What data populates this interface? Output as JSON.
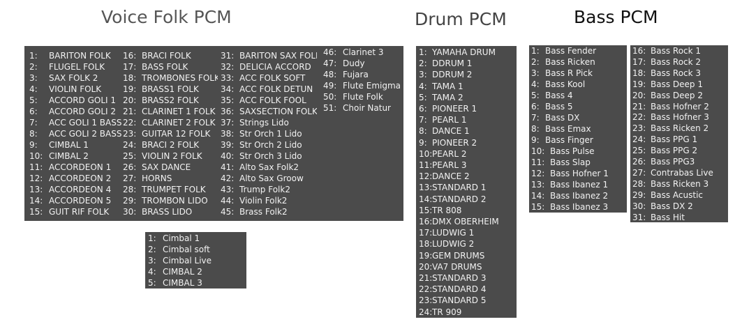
{
  "titles": {
    "voice": "Voice Folk PCM",
    "drum": "Drum PCM",
    "bass": "Bass PCM"
  },
  "colors": {
    "panel": "#4b4b4b",
    "text": "#f2f2f2",
    "voice_title": "#555555",
    "drum_title": "#444444",
    "bass_title": "#111111"
  },
  "voice": [
    {
      "n": "1:",
      "name": "BARITON FOLK"
    },
    {
      "n": "2:",
      "name": "FLUGEL FOLK"
    },
    {
      "n": "3:",
      "name": "SAX FOLK 2"
    },
    {
      "n": "4:",
      "name": "VIOLIN FOLK"
    },
    {
      "n": "5:",
      "name": "ACCORD GOLI 1"
    },
    {
      "n": "6:",
      "name": "ACCORD GOLI 2"
    },
    {
      "n": "7:",
      "name": "ACC GOLI 1 BASS"
    },
    {
      "n": "8:",
      "name": "ACC GOLI 2 BASS"
    },
    {
      "n": "9:",
      "name": "CIMBAL 1"
    },
    {
      "n": "10:",
      "name": "CIMBAL 2"
    },
    {
      "n": "11:",
      "name": "ACCORDEON 1"
    },
    {
      "n": "12:",
      "name": "ACCORDEON 2"
    },
    {
      "n": "13:",
      "name": "ACCORDEON 4"
    },
    {
      "n": "14:",
      "name": "ACCORDEON 5"
    },
    {
      "n": "15:",
      "name": "GUIT RIF FOLK"
    },
    {
      "n": "16:",
      "name": "BRACI FOLK"
    },
    {
      "n": "17:",
      "name": "BASS FOLK"
    },
    {
      "n": "18:",
      "name": "TROMBONES FOLK"
    },
    {
      "n": "19:",
      "name": "BRASS1 FOLK"
    },
    {
      "n": "20:",
      "name": "BRASS2 FOLK"
    },
    {
      "n": "21:",
      "name": "CLARINET 1 FOLK"
    },
    {
      "n": "22:",
      "name": "CLARINET 2 FOLK"
    },
    {
      "n": "23:",
      "name": "GUITAR 12 FOLK"
    },
    {
      "n": "24:",
      "name": "BRACI 2 FOLK"
    },
    {
      "n": "25:",
      "name": "VIOLIN 2 FOLK"
    },
    {
      "n": "26:",
      "name": "SAX DANCE"
    },
    {
      "n": "27:",
      "name": "HORNS"
    },
    {
      "n": "28:",
      "name": "TRUMPET FOLK"
    },
    {
      "n": "29:",
      "name": "TROMBON LIDO"
    },
    {
      "n": "30:",
      "name": "BRASS LIDO"
    },
    {
      "n": "31:",
      "name": "BARITON SAX FOLK"
    },
    {
      "n": "32:",
      "name": "DELICIA ACCORD"
    },
    {
      "n": "33:",
      "name": "ACC FOLK SOFT"
    },
    {
      "n": "34:",
      "name": "ACC FOLK DETUN"
    },
    {
      "n": "35:",
      "name": "ACC FOLK FOOL"
    },
    {
      "n": "36:",
      "name": "SAXSECTION FOLK"
    },
    {
      "n": "37:",
      "name": "Strings Lido"
    },
    {
      "n": "38:",
      "name": "Str Orch 1 Lido"
    },
    {
      "n": "39:",
      "name": "Str Orch 2 Lido"
    },
    {
      "n": "40:",
      "name": "Str Orch 3 Lido"
    },
    {
      "n": "41:",
      "name": "Alto Sax Folk2"
    },
    {
      "n": "42:",
      "name": "Alto Sax Groow"
    },
    {
      "n": "43:",
      "name": "Trump Folk2"
    },
    {
      "n": "44:",
      "name": "Violin Folk2"
    },
    {
      "n": "45:",
      "name": "Brass Folk2"
    },
    {
      "n": "46:",
      "name": "Clarinet 3"
    },
    {
      "n": "47:",
      "name": "Dudy"
    },
    {
      "n": "48:",
      "name": "Fujara"
    },
    {
      "n": "49:",
      "name": "Flute Emigma"
    },
    {
      "n": "50:",
      "name": "Flute Folk"
    },
    {
      "n": "51:",
      "name": "Choir Natur"
    }
  ],
  "cimbal": [
    {
      "n": "1:",
      "name": "Cimbal 1"
    },
    {
      "n": "2:",
      "name": "Cimbal soft"
    },
    {
      "n": "3:",
      "name": "Cimbal Live"
    },
    {
      "n": "4:",
      "name": "CIMBAL 2"
    },
    {
      "n": "5:",
      "name": "CIMBAL 3"
    }
  ],
  "drum": [
    {
      "n": "1:",
      "name": "YAMAHA DRUM"
    },
    {
      "n": "2:",
      "name": "DDRUM 1"
    },
    {
      "n": "3:",
      "name": "DDRUM 2"
    },
    {
      "n": "4:",
      "name": "TAMA 1"
    },
    {
      "n": "5:",
      "name": "TAMA 2"
    },
    {
      "n": "6:",
      "name": "PIONEER 1"
    },
    {
      "n": "7:",
      "name": "PEARL 1"
    },
    {
      "n": "8:",
      "name": "DANCE 1"
    },
    {
      "n": "9:",
      "name": "PIONEER 2"
    },
    {
      "n": "10:",
      "name": "PEARL 2"
    },
    {
      "n": "11:",
      "name": "PEARL 3"
    },
    {
      "n": "12:",
      "name": "DANCE 2"
    },
    {
      "n": "13:",
      "name": "STANDARD 1"
    },
    {
      "n": "14:",
      "name": "STANDARD 2"
    },
    {
      "n": "15:",
      "name": "TR 808"
    },
    {
      "n": "16:",
      "name": "DMX OBERHEIM"
    },
    {
      "n": "17:",
      "name": "LUDWIG 1"
    },
    {
      "n": "18:",
      "name": "LUDWIG 2"
    },
    {
      "n": "19:",
      "name": "GEM DRUMS"
    },
    {
      "n": "20:",
      "name": "VA7 DRUMS"
    },
    {
      "n": "21:",
      "name": "STANDARD 3"
    },
    {
      "n": "22:",
      "name": "STANDARD 4"
    },
    {
      "n": "23:",
      "name": "STANDARD 5"
    },
    {
      "n": "24:",
      "name": "TR 909"
    }
  ],
  "bass": [
    {
      "n": "1:",
      "name": "Bass Fender"
    },
    {
      "n": "2:",
      "name": "Bass Ricken"
    },
    {
      "n": "3:",
      "name": "Bass R Pick"
    },
    {
      "n": "4:",
      "name": "Bass Kool"
    },
    {
      "n": "5:",
      "name": "Bass 4"
    },
    {
      "n": "6:",
      "name": "Bass 5"
    },
    {
      "n": "7:",
      "name": "Bass DX"
    },
    {
      "n": "8:",
      "name": "Bass Emax"
    },
    {
      "n": "9:",
      "name": "Bass Finger"
    },
    {
      "n": "10:",
      "name": "Bass Pulse"
    },
    {
      "n": "11:",
      "name": "Bass Slap"
    },
    {
      "n": "12:",
      "name": "Bass Hofner 1"
    },
    {
      "n": "13:",
      "name": "Bass Ibanez 1"
    },
    {
      "n": "14:",
      "name": "Bass Ibanez 2"
    },
    {
      "n": "15:",
      "name": "Bass Ibanez 3"
    },
    {
      "n": "16:",
      "name": "Bass Rock 1"
    },
    {
      "n": "17:",
      "name": "Bass Rock 2"
    },
    {
      "n": "18:",
      "name": "Bass Rock 3"
    },
    {
      "n": "19:",
      "name": "Bass Deep 1"
    },
    {
      "n": "20:",
      "name": "Bass Deep 2"
    },
    {
      "n": "21:",
      "name": "Bass Hofner 2"
    },
    {
      "n": "22:",
      "name": "Bass Hofner 3"
    },
    {
      "n": "23:",
      "name": "Bass Ricken 2"
    },
    {
      "n": "24:",
      "name": "Bass PPG 1"
    },
    {
      "n": "25:",
      "name": "Bass PPG 2"
    },
    {
      "n": "26:",
      "name": "Bass PPG3"
    },
    {
      "n": "27:",
      "name": "Contrabas Live"
    },
    {
      "n": "28:",
      "name": "Bass Ricken 3"
    },
    {
      "n": "29:",
      "name": "Bass Acustic"
    },
    {
      "n": "30:",
      "name": "Bass DX 2"
    },
    {
      "n": "31:",
      "name": "Bass Hit"
    }
  ]
}
